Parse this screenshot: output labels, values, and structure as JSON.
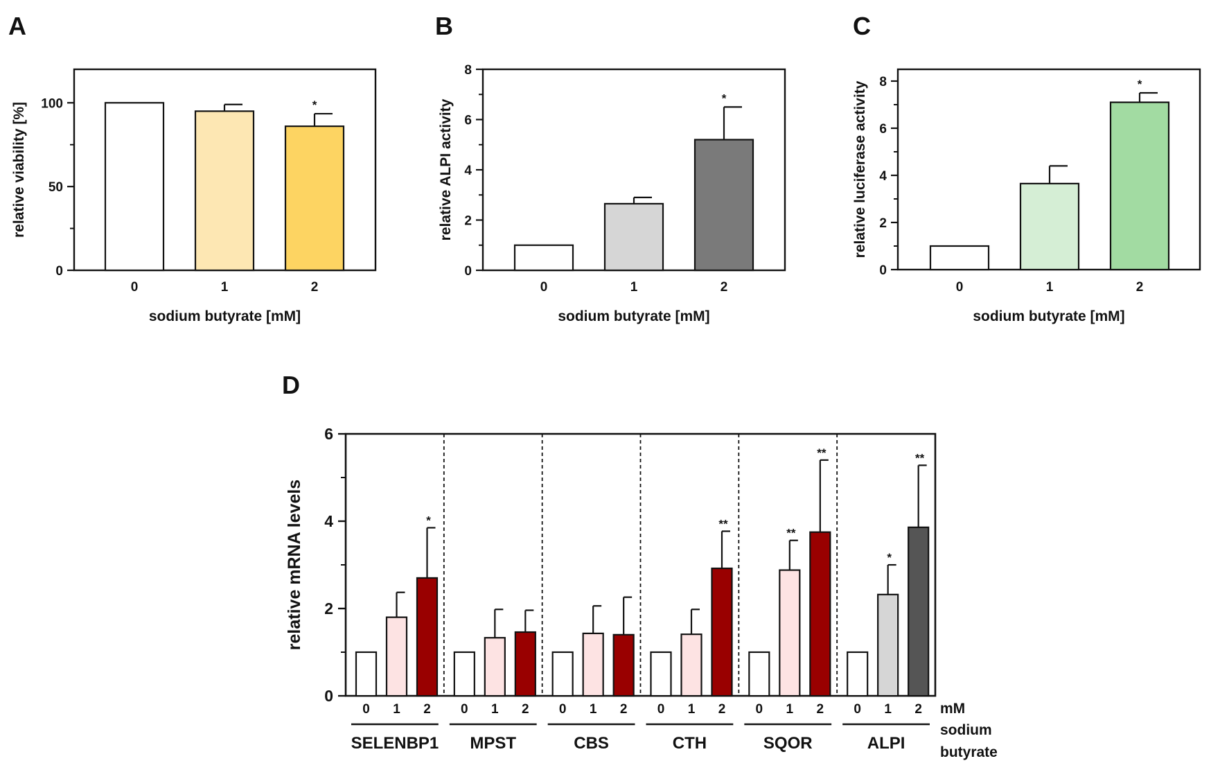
{
  "chart_data": [
    {
      "panel": "A",
      "type": "bar",
      "categories": [
        "0",
        "1",
        "2"
      ],
      "values": [
        100,
        95,
        86
      ],
      "errors": [
        0,
        4,
        7.5
      ],
      "significance": [
        "",
        "",
        "*"
      ],
      "colors": [
        "#ffffff",
        "#fde7b3",
        "#fdd462"
      ],
      "xlabel": "sodium butyrate [mM]",
      "ylabel": "relative viability [%]",
      "ylim": [
        0,
        120
      ],
      "yticks": [
        0,
        50,
        100
      ],
      "ytick_labels": [
        "0",
        "50",
        "100"
      ]
    },
    {
      "panel": "B",
      "type": "bar",
      "categories": [
        "0",
        "1",
        "2"
      ],
      "values": [
        1,
        2.65,
        5.2
      ],
      "errors": [
        0,
        0.25,
        1.3
      ],
      "significance": [
        "",
        "",
        "*"
      ],
      "colors": [
        "#ffffff",
        "#d6d6d6",
        "#7a7a7a"
      ],
      "xlabel": "sodium butyrate [mM]",
      "ylabel": "relative ALPI activity",
      "ylim": [
        0,
        8
      ],
      "yticks": [
        0,
        2,
        4,
        6,
        8
      ],
      "ytick_labels": [
        "0",
        "2",
        "4",
        "6",
        "8"
      ]
    },
    {
      "panel": "C",
      "type": "bar",
      "categories": [
        "0",
        "1",
        "2"
      ],
      "values": [
        1,
        3.65,
        7.1
      ],
      "errors": [
        0,
        0.75,
        0.4
      ],
      "significance": [
        "",
        "",
        "*"
      ],
      "colors": [
        "#ffffff",
        "#d5eed5",
        "#a2dba2"
      ],
      "xlabel": "sodium butyrate [mM]",
      "ylabel": "relative luciferase activity",
      "ylim": [
        0,
        8.5
      ],
      "yticks": [
        0,
        2,
        4,
        6,
        8
      ],
      "ytick_labels": [
        "0",
        "2",
        "4",
        "6",
        "8"
      ]
    },
    {
      "panel": "D",
      "type": "bar",
      "ylabel": "relative mRNA levels",
      "ylim": [
        0,
        6
      ],
      "yticks": [
        0,
        2,
        4,
        6
      ],
      "ytick_labels": [
        "0",
        "2",
        "4",
        "6"
      ],
      "dose_labels": [
        "0",
        "1",
        "2"
      ],
      "x_unit_label": [
        "mM",
        "sodium",
        "butyrate"
      ],
      "groups": [
        {
          "name": "SELENBP1",
          "values": [
            1,
            1.8,
            2.7
          ],
          "errors": [
            0,
            0.57,
            1.15
          ],
          "significance": [
            "",
            "",
            "*"
          ],
          "colors": [
            "#ffffff",
            "#fde3e3",
            "#990000"
          ]
        },
        {
          "name": "MPST",
          "values": [
            1,
            1.33,
            1.46
          ],
          "errors": [
            0,
            0.65,
            0.5
          ],
          "significance": [
            "",
            "",
            ""
          ],
          "colors": [
            "#ffffff",
            "#fde3e3",
            "#990000"
          ]
        },
        {
          "name": "CBS",
          "values": [
            1,
            1.43,
            1.4
          ],
          "errors": [
            0,
            0.63,
            0.86
          ],
          "significance": [
            "",
            "",
            ""
          ],
          "colors": [
            "#ffffff",
            "#fde3e3",
            "#990000"
          ]
        },
        {
          "name": "CTH",
          "values": [
            1,
            1.41,
            2.92
          ],
          "errors": [
            0,
            0.57,
            0.85
          ],
          "significance": [
            "",
            "",
            "**"
          ],
          "colors": [
            "#ffffff",
            "#fde3e3",
            "#990000"
          ]
        },
        {
          "name": "SQOR",
          "values": [
            1,
            2.88,
            3.75
          ],
          "errors": [
            0,
            0.68,
            1.65
          ],
          "significance": [
            "",
            "**",
            "**"
          ],
          "colors": [
            "#ffffff",
            "#fde3e3",
            "#990000"
          ]
        },
        {
          "name": "ALPI",
          "values": [
            1,
            2.32,
            3.86
          ],
          "errors": [
            0,
            0.68,
            1.42
          ],
          "significance": [
            "",
            "*",
            "**"
          ],
          "colors": [
            "#ffffff",
            "#d6d6d6",
            "#555555"
          ]
        }
      ]
    }
  ]
}
